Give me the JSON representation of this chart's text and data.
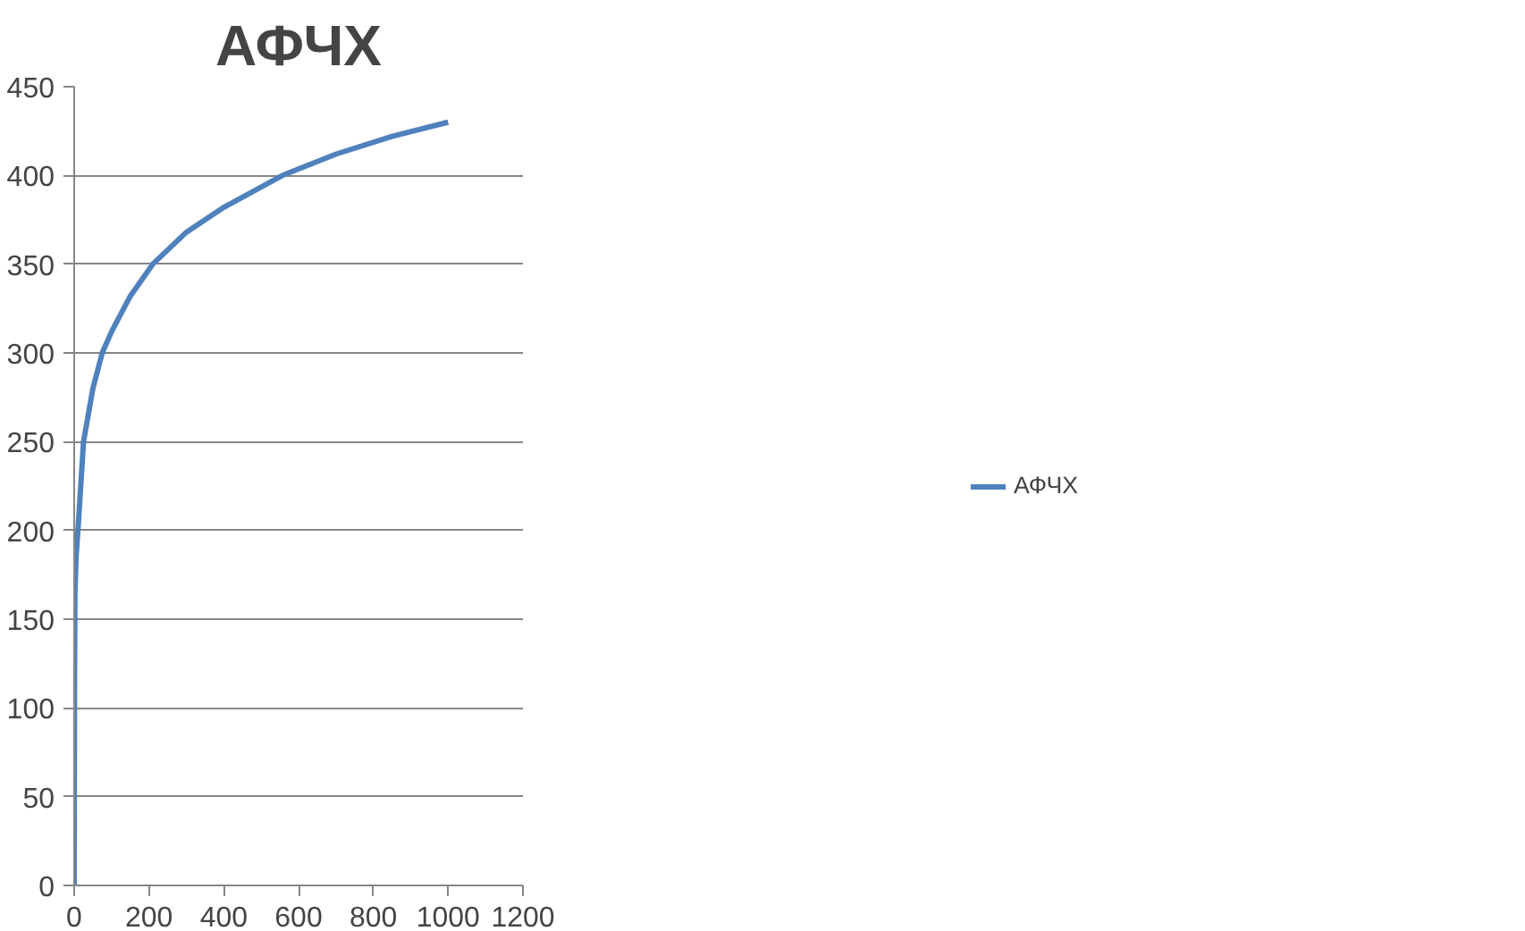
{
  "chart_data": {
    "type": "line",
    "title": "АФЧХ",
    "x": [
      0,
      1,
      2,
      5,
      10,
      25,
      50,
      75,
      100,
      150,
      210,
      300,
      400,
      557,
      700,
      850,
      1000
    ],
    "series": [
      {
        "name": "АФЧХ",
        "color": "#4f81bd",
        "values": [
          0,
          120,
          165,
          185,
          200,
          250,
          280,
          300,
          312,
          332,
          350,
          368,
          382,
          400,
          412,
          422,
          430
        ]
      }
    ],
    "xlim": [
      0,
      1200
    ],
    "xticks": [
      0,
      200,
      400,
      600,
      800,
      1000,
      1200
    ],
    "ylim": [
      0,
      450
    ],
    "yticks": [
      0,
      50,
      100,
      150,
      200,
      250,
      300,
      350,
      400,
      450
    ],
    "grid": "y",
    "legend": "right",
    "marker": "none",
    "line_style": "solid"
  }
}
